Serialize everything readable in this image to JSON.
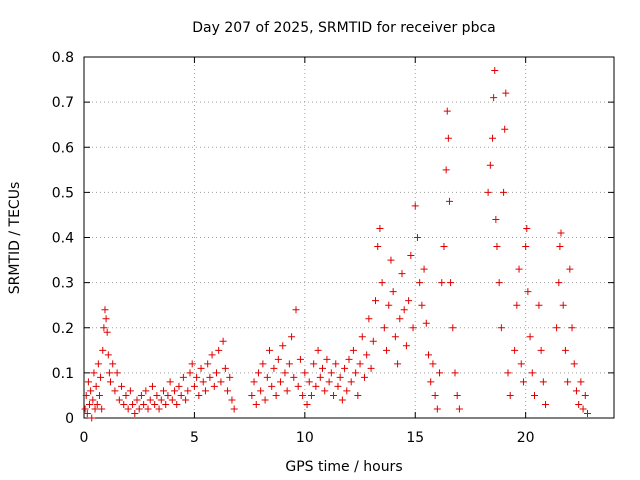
{
  "chart_data": {
    "type": "scatter",
    "title": "Day 207 of 2025, SRMTID for receiver pbca",
    "xlabel": "GPS time / hours",
    "ylabel": "SRMTID / TECUs",
    "xlim": [
      0,
      24
    ],
    "ylim": [
      0,
      0.8
    ],
    "xticks": [
      0,
      5,
      10,
      15,
      20
    ],
    "yticks": [
      0,
      0.1,
      0.2,
      0.3,
      0.4,
      0.5,
      0.6,
      0.7,
      0.8
    ],
    "xtick_labels": [
      "0",
      "5",
      "10",
      "15",
      "20"
    ],
    "ytick_labels": [
      "0",
      "0.1",
      "0.2",
      "0.3",
      "0.4",
      "0.5",
      "0.6",
      "0.7",
      "0.8"
    ],
    "grid": true,
    "marker": "+",
    "color": "#e00000",
    "series": [
      {
        "name": "SRMTID",
        "points": [
          [
            0.05,
            0.02
          ],
          [
            0.1,
            0.05
          ],
          [
            0.15,
            0.01
          ],
          [
            0.2,
            0.08
          ],
          [
            0.25,
            0.03
          ],
          [
            0.3,
            0.06
          ],
          [
            0.35,
            0.0
          ],
          [
            0.4,
            0.04
          ],
          [
            0.45,
            0.1
          ],
          [
            0.5,
            0.02
          ],
          [
            0.55,
            0.07
          ],
          [
            0.6,
            0.03
          ],
          [
            0.65,
            0.12
          ],
          [
            0.7,
            0.05
          ],
          [
            0.75,
            0.09
          ],
          [
            0.8,
            0.02
          ],
          [
            0.85,
            0.15
          ],
          [
            0.9,
            0.2
          ],
          [
            0.95,
            0.24
          ],
          [
            1.0,
            0.22
          ],
          [
            1.05,
            0.19
          ],
          [
            1.1,
            0.14
          ],
          [
            1.15,
            0.1
          ],
          [
            1.2,
            0.08
          ],
          [
            1.3,
            0.12
          ],
          [
            1.4,
            0.06
          ],
          [
            1.5,
            0.1
          ],
          [
            1.6,
            0.04
          ],
          [
            1.7,
            0.07
          ],
          [
            1.8,
            0.03
          ],
          [
            1.9,
            0.05
          ],
          [
            2.0,
            0.02
          ],
          [
            2.1,
            0.06
          ],
          [
            2.2,
            0.03
          ],
          [
            2.3,
            0.01
          ],
          [
            2.4,
            0.04
          ],
          [
            2.5,
            0.02
          ],
          [
            2.6,
            0.05
          ],
          [
            2.7,
            0.03
          ],
          [
            2.8,
            0.06
          ],
          [
            2.9,
            0.02
          ],
          [
            3.0,
            0.04
          ],
          [
            3.1,
            0.07
          ],
          [
            3.2,
            0.03
          ],
          [
            3.3,
            0.05
          ],
          [
            3.4,
            0.02
          ],
          [
            3.5,
            0.04
          ],
          [
            3.6,
            0.06
          ],
          [
            3.7,
            0.03
          ],
          [
            3.8,
            0.05
          ],
          [
            3.9,
            0.08
          ],
          [
            4.0,
            0.04
          ],
          [
            4.1,
            0.06
          ],
          [
            4.2,
            0.03
          ],
          [
            4.3,
            0.07
          ],
          [
            4.4,
            0.05
          ],
          [
            4.5,
            0.09
          ],
          [
            4.6,
            0.04
          ],
          [
            4.7,
            0.06
          ],
          [
            4.8,
            0.1
          ],
          [
            4.9,
            0.12
          ],
          [
            5.0,
            0.07
          ],
          [
            5.1,
            0.09
          ],
          [
            5.2,
            0.05
          ],
          [
            5.3,
            0.11
          ],
          [
            5.4,
            0.08
          ],
          [
            5.5,
            0.06
          ],
          [
            5.6,
            0.12
          ],
          [
            5.7,
            0.09
          ],
          [
            5.8,
            0.14
          ],
          [
            5.9,
            0.07
          ],
          [
            6.0,
            0.1
          ],
          [
            6.1,
            0.15
          ],
          [
            6.2,
            0.08
          ],
          [
            6.3,
            0.17
          ],
          [
            6.4,
            0.11
          ],
          [
            6.5,
            0.06
          ],
          [
            6.6,
            0.09
          ],
          [
            6.7,
            0.04
          ],
          [
            6.8,
            0.02
          ],
          [
            7.6,
            0.05
          ],
          [
            7.7,
            0.08
          ],
          [
            7.8,
            0.03
          ],
          [
            7.9,
            0.1
          ],
          [
            8.0,
            0.06
          ],
          [
            8.1,
            0.12
          ],
          [
            8.2,
            0.04
          ],
          [
            8.3,
            0.09
          ],
          [
            8.4,
            0.15
          ],
          [
            8.5,
            0.07
          ],
          [
            8.6,
            0.11
          ],
          [
            8.7,
            0.05
          ],
          [
            8.8,
            0.13
          ],
          [
            8.9,
            0.08
          ],
          [
            9.0,
            0.16
          ],
          [
            9.1,
            0.1
          ],
          [
            9.2,
            0.06
          ],
          [
            9.3,
            0.12
          ],
          [
            9.4,
            0.18
          ],
          [
            9.5,
            0.09
          ],
          [
            9.6,
            0.24
          ],
          [
            9.7,
            0.07
          ],
          [
            9.8,
            0.13
          ],
          [
            9.9,
            0.05
          ],
          [
            10.0,
            0.1
          ],
          [
            10.1,
            0.03
          ],
          [
            10.2,
            0.08
          ],
          [
            10.3,
            0.05
          ],
          [
            10.4,
            0.12
          ],
          [
            10.5,
            0.07
          ],
          [
            10.6,
            0.15
          ],
          [
            10.7,
            0.09
          ],
          [
            10.8,
            0.11
          ],
          [
            10.9,
            0.06
          ],
          [
            11.0,
            0.13
          ],
          [
            11.1,
            0.08
          ],
          [
            11.2,
            0.1
          ],
          [
            11.3,
            0.05
          ],
          [
            11.4,
            0.12
          ],
          [
            11.5,
            0.07
          ],
          [
            11.6,
            0.09
          ],
          [
            11.7,
            0.04
          ],
          [
            11.8,
            0.11
          ],
          [
            11.9,
            0.06
          ],
          [
            12.0,
            0.13
          ],
          [
            12.1,
            0.08
          ],
          [
            12.2,
            0.15
          ],
          [
            12.3,
            0.1
          ],
          [
            12.4,
            0.05
          ],
          [
            12.5,
            0.12
          ],
          [
            12.6,
            0.18
          ],
          [
            12.7,
            0.09
          ],
          [
            12.8,
            0.14
          ],
          [
            12.9,
            0.22
          ],
          [
            13.0,
            0.11
          ],
          [
            13.1,
            0.17
          ],
          [
            13.2,
            0.26
          ],
          [
            13.3,
            0.38
          ],
          [
            13.4,
            0.42
          ],
          [
            13.5,
            0.3
          ],
          [
            13.6,
            0.2
          ],
          [
            13.7,
            0.15
          ],
          [
            13.8,
            0.25
          ],
          [
            13.9,
            0.35
          ],
          [
            14.0,
            0.28
          ],
          [
            14.1,
            0.18
          ],
          [
            14.2,
            0.12
          ],
          [
            14.3,
            0.22
          ],
          [
            14.4,
            0.32
          ],
          [
            14.5,
            0.24
          ],
          [
            14.6,
            0.16
          ],
          [
            14.7,
            0.26
          ],
          [
            14.8,
            0.36
          ],
          [
            14.9,
            0.2
          ],
          [
            15.0,
            0.47
          ],
          [
            15.1,
            0.4
          ],
          [
            15.2,
            0.3
          ],
          [
            15.3,
            0.25
          ],
          [
            15.4,
            0.33
          ],
          [
            15.5,
            0.21
          ],
          [
            15.6,
            0.14
          ],
          [
            15.7,
            0.08
          ],
          [
            15.8,
            0.12
          ],
          [
            15.9,
            0.05
          ],
          [
            16.0,
            0.02
          ],
          [
            16.1,
            0.1
          ],
          [
            16.2,
            0.3
          ],
          [
            16.3,
            0.38
          ],
          [
            16.4,
            0.55
          ],
          [
            16.45,
            0.68
          ],
          [
            16.5,
            0.62
          ],
          [
            16.55,
            0.48
          ],
          [
            16.6,
            0.3
          ],
          [
            16.7,
            0.2
          ],
          [
            16.8,
            0.1
          ],
          [
            16.9,
            0.05
          ],
          [
            17.0,
            0.02
          ],
          [
            18.3,
            0.5
          ],
          [
            18.4,
            0.56
          ],
          [
            18.5,
            0.62
          ],
          [
            18.55,
            0.71
          ],
          [
            18.6,
            0.77
          ],
          [
            18.65,
            0.44
          ],
          [
            18.7,
            0.38
          ],
          [
            18.8,
            0.3
          ],
          [
            18.9,
            0.2
          ],
          [
            19.0,
            0.5
          ],
          [
            19.05,
            0.64
          ],
          [
            19.1,
            0.72
          ],
          [
            19.2,
            0.1
          ],
          [
            19.3,
            0.05
          ],
          [
            19.5,
            0.15
          ],
          [
            19.6,
            0.25
          ],
          [
            19.7,
            0.33
          ],
          [
            19.8,
            0.12
          ],
          [
            19.9,
            0.08
          ],
          [
            20.0,
            0.38
          ],
          [
            20.05,
            0.42
          ],
          [
            20.1,
            0.28
          ],
          [
            20.2,
            0.18
          ],
          [
            20.3,
            0.1
          ],
          [
            20.4,
            0.05
          ],
          [
            20.6,
            0.25
          ],
          [
            20.7,
            0.15
          ],
          [
            20.8,
            0.08
          ],
          [
            20.9,
            0.03
          ],
          [
            21.4,
            0.2
          ],
          [
            21.5,
            0.3
          ],
          [
            21.55,
            0.38
          ],
          [
            21.6,
            0.41
          ],
          [
            21.7,
            0.25
          ],
          [
            21.8,
            0.15
          ],
          [
            21.9,
            0.08
          ],
          [
            22.0,
            0.33
          ],
          [
            22.1,
            0.2
          ],
          [
            22.2,
            0.12
          ],
          [
            22.3,
            0.06
          ],
          [
            22.4,
            0.03
          ],
          [
            22.5,
            0.08
          ],
          [
            22.6,
            0.02
          ],
          [
            22.7,
            0.05
          ],
          [
            22.8,
            0.01
          ]
        ]
      }
    ]
  }
}
